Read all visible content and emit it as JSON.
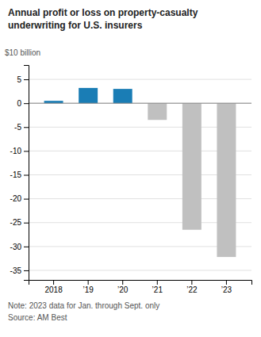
{
  "chart_data": {
    "type": "bar",
    "title": [
      "Annual profit or loss on property-casualty",
      "underwriting for U.S. insurers"
    ],
    "ylabel": "$10 billion",
    "categories": [
      "2018",
      "’19",
      "’20",
      "’21",
      "’22",
      "’23"
    ],
    "values": [
      0.5,
      3.2,
      3.0,
      -3.5,
      -26.5,
      -32.2
    ],
    "colors": [
      "#1a7db5",
      "#1a7db5",
      "#1a7db5",
      "#c0c0c0",
      "#c0c0c0",
      "#c0c0c0"
    ],
    "ylim": [
      -37,
      8
    ],
    "yticks": [
      5,
      0,
      -5,
      -10,
      -15,
      -20,
      -25,
      -30,
      -35
    ],
    "grid": true,
    "annotations": [
      "Note: 2023 data for Jan. through Sept. only",
      "Source: AM Best"
    ]
  }
}
